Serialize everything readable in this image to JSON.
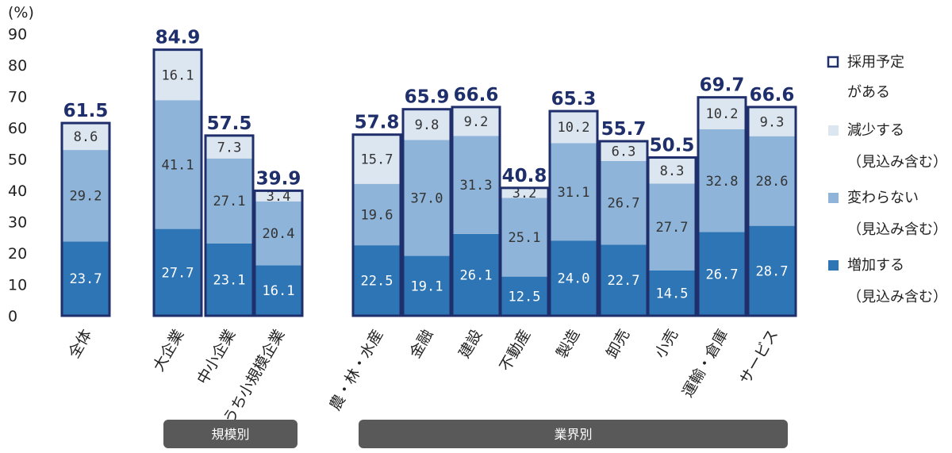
{
  "chart_data": {
    "type": "bar",
    "stacked": true,
    "y_unit": "(%)",
    "ylim": [
      0,
      90
    ],
    "yticks": [
      0,
      10,
      20,
      30,
      40,
      50,
      60,
      70,
      80,
      90
    ],
    "categories": [
      "全体",
      "大企業",
      "中小企業",
      "うち小規模企業",
      "農・林・水産",
      "金融",
      "建設",
      "不動産",
      "製造",
      "卸売",
      "小売",
      "運輸・倉庫",
      "サービス"
    ],
    "series": [
      {
        "name": "増加する",
        "name_note": "（見込み含む）",
        "color": "#2e75b6",
        "values": [
          "23.7",
          "27.7",
          "23.1",
          "16.1",
          "22.5",
          "19.1",
          "26.1",
          "12.5",
          "24.0",
          "22.7",
          "14.5",
          "26.7",
          "28.7"
        ]
      },
      {
        "name": "変わらない",
        "name_note": "（見込み含む）",
        "color": "#8eb4d9",
        "values": [
          "29.2",
          "41.1",
          "27.1",
          "20.4",
          "19.6",
          "37.0",
          "31.3",
          "25.1",
          "31.1",
          "26.7",
          "27.7",
          "32.8",
          "28.6"
        ]
      },
      {
        "name": "減少する",
        "name_note": "（見込み含む）",
        "color": "#dce6f1",
        "values": [
          "8.6",
          "16.1",
          "7.3",
          "3.4",
          "15.7",
          "9.8",
          "9.2",
          "3.2",
          "10.2",
          "6.3",
          "8.3",
          "10.2",
          "9.3"
        ]
      }
    ],
    "totals_series_name": "採用予定",
    "totals_series_name_2": "がある",
    "totals_color": "#1f2f6b",
    "totals": [
      "61.5",
      "84.9",
      "57.5",
      "39.9",
      "57.8",
      "65.9",
      "66.6",
      "40.8",
      "65.3",
      "55.7",
      "50.5",
      "69.7",
      "66.6"
    ],
    "groups": [
      {
        "label": "規模別"
      },
      {
        "label": "業界別"
      }
    ],
    "legend_position": "right",
    "grid": false
  }
}
